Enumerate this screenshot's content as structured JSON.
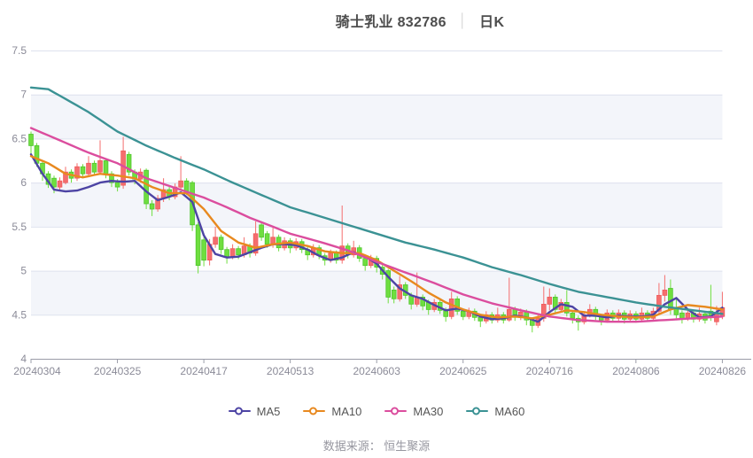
{
  "header": {
    "title": "骑士乳业 832786",
    "separator": "│",
    "period_label": "日K"
  },
  "footer": {
    "source_label": "数据来源： 恒生聚源"
  },
  "legend": {
    "items": [
      {
        "label": "MA5",
        "color": "#4d44a4"
      },
      {
        "label": "MA10",
        "color": "#e8891f"
      },
      {
        "label": "MA30",
        "color": "#db4d9e"
      },
      {
        "label": "MA60",
        "color": "#3b9294"
      }
    ]
  },
  "style": {
    "band_color": "#f3f5fa",
    "grid_color": "#dee2ee",
    "axis_color": "#9a9ca8",
    "label_color": "#8b8b98",
    "title_color": "#4d4d4d"
  },
  "chart_data": {
    "type": "candlestick",
    "title": "骑士乳业 832786 日K",
    "x_tick_labels": [
      "20240304",
      "20240325",
      "20240417",
      "20240513",
      "20240603",
      "20240625",
      "20240716",
      "20240806",
      "20240826"
    ],
    "y_ticks": [
      7.5,
      7,
      6.5,
      6,
      5.5,
      5,
      4.5,
      4
    ],
    "ylim": [
      4.0,
      7.5
    ],
    "grid": true,
    "legend_position": "bottom",
    "up_color": "#f46e6e",
    "up_border": "#ef5a5a",
    "down_color": "#6fde3f",
    "down_border": "#4ec52d",
    "candle_format": "[open, close, low, high]",
    "candles": [
      [
        6.55,
        6.42,
        6.3,
        6.58
      ],
      [
        6.42,
        6.22,
        6.18,
        6.45
      ],
      [
        6.22,
        6.1,
        6.02,
        6.24
      ],
      [
        6.1,
        5.98,
        5.94,
        6.13
      ],
      [
        6.05,
        5.95,
        5.88,
        6.08
      ],
      [
        5.95,
        6.02,
        5.92,
        6.06
      ],
      [
        6.0,
        6.12,
        5.98,
        6.18
      ],
      [
        6.12,
        6.05,
        6.0,
        6.15
      ],
      [
        6.05,
        6.18,
        6.02,
        6.22
      ],
      [
        6.18,
        6.1,
        6.05,
        6.21
      ],
      [
        6.1,
        6.22,
        6.07,
        6.3
      ],
      [
        6.22,
        6.12,
        6.08,
        6.25
      ],
      [
        6.12,
        6.25,
        6.1,
        6.48
      ],
      [
        6.25,
        6.1,
        6.05,
        6.27
      ],
      [
        6.1,
        6.0,
        5.95,
        6.13
      ],
      [
        6.0,
        5.95,
        5.9,
        6.04
      ],
      [
        5.97,
        6.36,
        5.93,
        6.52
      ],
      [
        6.32,
        6.12,
        6.08,
        6.35
      ],
      [
        6.12,
        6.04,
        5.98,
        6.15
      ],
      [
        6.04,
        6.12,
        6.0,
        6.16
      ],
      [
        6.14,
        5.76,
        5.7,
        6.16
      ],
      [
        5.76,
        5.7,
        5.62,
        5.8
      ],
      [
        5.7,
        5.82,
        5.67,
        5.86
      ],
      [
        5.82,
        5.92,
        5.78,
        6.05
      ],
      [
        5.92,
        5.84,
        5.8,
        5.95
      ],
      [
        5.84,
        5.95,
        5.81,
        5.99
      ],
      [
        5.95,
        6.02,
        5.91,
        6.3
      ],
      [
        6.02,
        5.9,
        5.86,
        6.05
      ],
      [
        6.0,
        5.52,
        5.45,
        6.02
      ],
      [
        5.52,
        5.06,
        4.97,
        5.55
      ],
      [
        5.35,
        5.12,
        5.05,
        5.38
      ],
      [
        5.12,
        5.3,
        5.06,
        5.36
      ],
      [
        5.3,
        5.38,
        5.26,
        5.5
      ],
      [
        5.38,
        5.24,
        5.19,
        5.41
      ],
      [
        5.24,
        5.16,
        5.08,
        5.27
      ],
      [
        5.16,
        5.25,
        5.13,
        5.3
      ],
      [
        5.25,
        5.18,
        5.13,
        5.28
      ],
      [
        5.18,
        5.28,
        5.15,
        5.38
      ],
      [
        5.28,
        5.2,
        5.15,
        5.31
      ],
      [
        5.2,
        5.42,
        5.17,
        5.56
      ],
      [
        5.52,
        5.38,
        5.34,
        5.56
      ],
      [
        5.42,
        5.3,
        5.26,
        5.45
      ],
      [
        5.3,
        5.38,
        5.26,
        5.5
      ],
      [
        5.38,
        5.26,
        5.22,
        5.41
      ],
      [
        5.26,
        5.34,
        5.23,
        5.38
      ],
      [
        5.34,
        5.26,
        5.2,
        5.37
      ],
      [
        5.26,
        5.33,
        5.23,
        5.37
      ],
      [
        5.33,
        5.24,
        5.2,
        5.36
      ],
      [
        5.24,
        5.18,
        5.12,
        5.27
      ],
      [
        5.18,
        5.26,
        5.15,
        5.3
      ],
      [
        5.26,
        5.17,
        5.13,
        5.29
      ],
      [
        5.17,
        5.12,
        5.06,
        5.2
      ],
      [
        5.12,
        5.2,
        5.09,
        5.24
      ],
      [
        5.2,
        5.12,
        5.08,
        5.23
      ],
      [
        5.12,
        5.28,
        5.08,
        5.74
      ],
      [
        5.28,
        5.18,
        5.14,
        5.31
      ],
      [
        5.18,
        5.26,
        5.15,
        5.34
      ],
      [
        5.26,
        5.14,
        5.1,
        5.29
      ],
      [
        5.14,
        5.06,
        5.0,
        5.17
      ],
      [
        5.06,
        5.14,
        5.03,
        5.18
      ],
      [
        5.14,
        5.04,
        4.98,
        5.17
      ],
      [
        5.04,
        4.96,
        4.9,
        5.07
      ],
      [
        5.0,
        4.7,
        4.63,
        5.02
      ],
      [
        4.78,
        4.68,
        4.63,
        4.82
      ],
      [
        4.68,
        4.84,
        4.65,
        4.94
      ],
      [
        4.84,
        4.72,
        4.68,
        4.87
      ],
      [
        4.72,
        4.62,
        4.56,
        4.75
      ],
      [
        4.62,
        4.7,
        4.59,
        4.98
      ],
      [
        4.7,
        4.6,
        4.55,
        4.73
      ],
      [
        4.64,
        4.56,
        4.5,
        4.67
      ],
      [
        4.56,
        4.64,
        4.53,
        4.68
      ],
      [
        4.64,
        4.55,
        4.51,
        4.67
      ],
      [
        4.55,
        4.48,
        4.42,
        4.58
      ],
      [
        4.48,
        4.68,
        4.45,
        4.76
      ],
      [
        4.68,
        4.54,
        4.5,
        4.71
      ],
      [
        4.54,
        4.48,
        4.44,
        4.57
      ],
      [
        4.48,
        4.54,
        4.45,
        4.58
      ],
      [
        4.54,
        4.47,
        4.43,
        4.57
      ],
      [
        4.47,
        4.43,
        4.36,
        4.5
      ],
      [
        4.43,
        4.5,
        4.4,
        4.54
      ],
      [
        4.5,
        4.44,
        4.4,
        4.53
      ],
      [
        4.44,
        4.5,
        4.41,
        4.58
      ],
      [
        4.5,
        4.44,
        4.4,
        4.53
      ],
      [
        4.44,
        4.56,
        4.42,
        4.92
      ],
      [
        4.56,
        4.47,
        4.43,
        4.59
      ],
      [
        4.47,
        4.53,
        4.44,
        4.57
      ],
      [
        4.53,
        4.44,
        4.38,
        4.56
      ],
      [
        4.44,
        4.38,
        4.3,
        4.47
      ],
      [
        4.38,
        4.46,
        4.35,
        4.5
      ],
      [
        4.46,
        4.62,
        4.42,
        4.82
      ],
      [
        4.62,
        4.7,
        4.55,
        4.8
      ],
      [
        4.7,
        4.56,
        4.52,
        4.73
      ],
      [
        4.56,
        4.64,
        4.53,
        4.68
      ],
      [
        4.64,
        4.52,
        4.48,
        4.78
      ],
      [
        4.52,
        4.46,
        4.4,
        4.55
      ],
      [
        4.46,
        4.42,
        4.32,
        4.49
      ],
      [
        4.42,
        4.5,
        4.39,
        4.54
      ],
      [
        4.5,
        4.56,
        4.47,
        4.62
      ],
      [
        4.56,
        4.48,
        4.44,
        4.59
      ],
      [
        4.48,
        4.44,
        4.38,
        4.51
      ],
      [
        4.44,
        4.52,
        4.41,
        4.56
      ],
      [
        4.52,
        4.46,
        4.42,
        4.55
      ],
      [
        4.46,
        4.52,
        4.43,
        4.56
      ],
      [
        4.52,
        4.45,
        4.4,
        4.55
      ],
      [
        4.45,
        4.51,
        4.42,
        4.55
      ],
      [
        4.51,
        4.45,
        4.41,
        4.54
      ],
      [
        4.45,
        4.52,
        4.42,
        4.58
      ],
      [
        4.52,
        4.46,
        4.42,
        4.55
      ],
      [
        4.46,
        4.54,
        4.43,
        4.58
      ],
      [
        4.54,
        4.72,
        4.5,
        4.86
      ],
      [
        4.72,
        4.78,
        4.65,
        4.95
      ],
      [
        4.8,
        4.56,
        4.5,
        4.9
      ],
      [
        4.58,
        4.5,
        4.46,
        4.7
      ],
      [
        4.52,
        4.46,
        4.4,
        4.55
      ],
      [
        4.46,
        4.52,
        4.43,
        4.56
      ],
      [
        4.52,
        4.45,
        4.41,
        4.55
      ],
      [
        4.45,
        4.51,
        4.42,
        4.58
      ],
      [
        4.51,
        4.44,
        4.4,
        4.54
      ],
      [
        4.54,
        4.47,
        4.43,
        4.84
      ],
      [
        4.42,
        4.52,
        4.38,
        4.6
      ],
      [
        4.48,
        4.58,
        4.45,
        4.76
      ]
    ],
    "series": [
      {
        "name": "MA5",
        "color": "#4d44a4",
        "points": [
          [
            0,
            6.32
          ],
          [
            2,
            6.1
          ],
          [
            4,
            5.92
          ],
          [
            6,
            5.9
          ],
          [
            8,
            5.91
          ],
          [
            10,
            5.95
          ],
          [
            12,
            6.0
          ],
          [
            14,
            6.02
          ],
          [
            16,
            6.01
          ],
          [
            18,
            6.02
          ],
          [
            20,
            5.9
          ],
          [
            22,
            5.8
          ],
          [
            24,
            5.84
          ],
          [
            26,
            5.89
          ],
          [
            28,
            5.78
          ],
          [
            30,
            5.4
          ],
          [
            32,
            5.19
          ],
          [
            34,
            5.15
          ],
          [
            36,
            5.16
          ],
          [
            38,
            5.21
          ],
          [
            40,
            5.26
          ],
          [
            42,
            5.3
          ],
          [
            44,
            5.3
          ],
          [
            46,
            5.29
          ],
          [
            48,
            5.24
          ],
          [
            50,
            5.17
          ],
          [
            52,
            5.12
          ],
          [
            54,
            5.15
          ],
          [
            56,
            5.21
          ],
          [
            58,
            5.16
          ],
          [
            60,
            5.08
          ],
          [
            62,
            4.93
          ],
          [
            64,
            4.8
          ],
          [
            66,
            4.72
          ],
          [
            68,
            4.68
          ],
          [
            70,
            4.61
          ],
          [
            72,
            4.55
          ],
          [
            74,
            4.57
          ],
          [
            76,
            4.54
          ],
          [
            78,
            4.48
          ],
          [
            80,
            4.45
          ],
          [
            82,
            4.46
          ],
          [
            84,
            4.49
          ],
          [
            86,
            4.47
          ],
          [
            88,
            4.42
          ],
          [
            90,
            4.53
          ],
          [
            92,
            4.62
          ],
          [
            94,
            4.59
          ],
          [
            96,
            4.49
          ],
          [
            98,
            4.49
          ],
          [
            100,
            4.47
          ],
          [
            102,
            4.49
          ],
          [
            104,
            4.48
          ],
          [
            106,
            4.48
          ],
          [
            108,
            4.5
          ],
          [
            110,
            4.62
          ],
          [
            112,
            4.69
          ],
          [
            114,
            4.56
          ],
          [
            116,
            4.47
          ],
          [
            118,
            4.48
          ],
          [
            120,
            4.58
          ]
        ]
      },
      {
        "name": "MA10",
        "color": "#e8891f",
        "points": [
          [
            0,
            6.3
          ],
          [
            3,
            6.22
          ],
          [
            6,
            6.1
          ],
          [
            9,
            6.06
          ],
          [
            12,
            6.1
          ],
          [
            15,
            6.08
          ],
          [
            18,
            6.05
          ],
          [
            21,
            5.95
          ],
          [
            24,
            5.88
          ],
          [
            27,
            5.88
          ],
          [
            30,
            5.7
          ],
          [
            33,
            5.45
          ],
          [
            36,
            5.32
          ],
          [
            39,
            5.26
          ],
          [
            42,
            5.3
          ],
          [
            45,
            5.32
          ],
          [
            48,
            5.28
          ],
          [
            51,
            5.22
          ],
          [
            54,
            5.2
          ],
          [
            57,
            5.2
          ],
          [
            60,
            5.12
          ],
          [
            63,
            5.0
          ],
          [
            66,
            4.88
          ],
          [
            69,
            4.75
          ],
          [
            72,
            4.64
          ],
          [
            75,
            4.56
          ],
          [
            78,
            4.5
          ],
          [
            81,
            4.47
          ],
          [
            84,
            4.48
          ],
          [
            87,
            4.46
          ],
          [
            90,
            4.5
          ],
          [
            93,
            4.55
          ],
          [
            96,
            4.53
          ],
          [
            99,
            4.5
          ],
          [
            102,
            4.48
          ],
          [
            105,
            4.47
          ],
          [
            108,
            4.48
          ],
          [
            111,
            4.56
          ],
          [
            114,
            4.61
          ],
          [
            117,
            4.59
          ],
          [
            120,
            4.56
          ]
        ]
      },
      {
        "name": "MA30",
        "color": "#db4d9e",
        "points": [
          [
            0,
            6.62
          ],
          [
            5,
            6.48
          ],
          [
            10,
            6.34
          ],
          [
            15,
            6.22
          ],
          [
            20,
            6.05
          ],
          [
            25,
            5.94
          ],
          [
            30,
            5.83
          ],
          [
            34,
            5.72
          ],
          [
            38,
            5.6
          ],
          [
            42,
            5.5
          ],
          [
            45,
            5.42
          ],
          [
            50,
            5.33
          ],
          [
            55,
            5.23
          ],
          [
            60,
            5.1
          ],
          [
            65,
            4.98
          ],
          [
            70,
            4.86
          ],
          [
            75,
            4.73
          ],
          [
            80,
            4.63
          ],
          [
            85,
            4.55
          ],
          [
            90,
            4.48
          ],
          [
            95,
            4.44
          ],
          [
            100,
            4.42
          ],
          [
            105,
            4.42
          ],
          [
            110,
            4.44
          ],
          [
            115,
            4.46
          ],
          [
            120,
            4.48
          ]
        ]
      },
      {
        "name": "MA60",
        "color": "#3b9294",
        "points": [
          [
            0,
            7.08
          ],
          [
            3,
            7.06
          ],
          [
            6,
            6.95
          ],
          [
            10,
            6.8
          ],
          [
            15,
            6.58
          ],
          [
            20,
            6.42
          ],
          [
            25,
            6.28
          ],
          [
            30,
            6.15
          ],
          [
            35,
            6.0
          ],
          [
            40,
            5.86
          ],
          [
            45,
            5.72
          ],
          [
            50,
            5.62
          ],
          [
            55,
            5.52
          ],
          [
            60,
            5.42
          ],
          [
            65,
            5.32
          ],
          [
            70,
            5.24
          ],
          [
            75,
            5.15
          ],
          [
            80,
            5.04
          ],
          [
            85,
            4.95
          ],
          [
            90,
            4.85
          ],
          [
            95,
            4.76
          ],
          [
            100,
            4.7
          ],
          [
            105,
            4.64
          ],
          [
            110,
            4.59
          ],
          [
            115,
            4.55
          ],
          [
            120,
            4.51
          ]
        ]
      }
    ]
  }
}
